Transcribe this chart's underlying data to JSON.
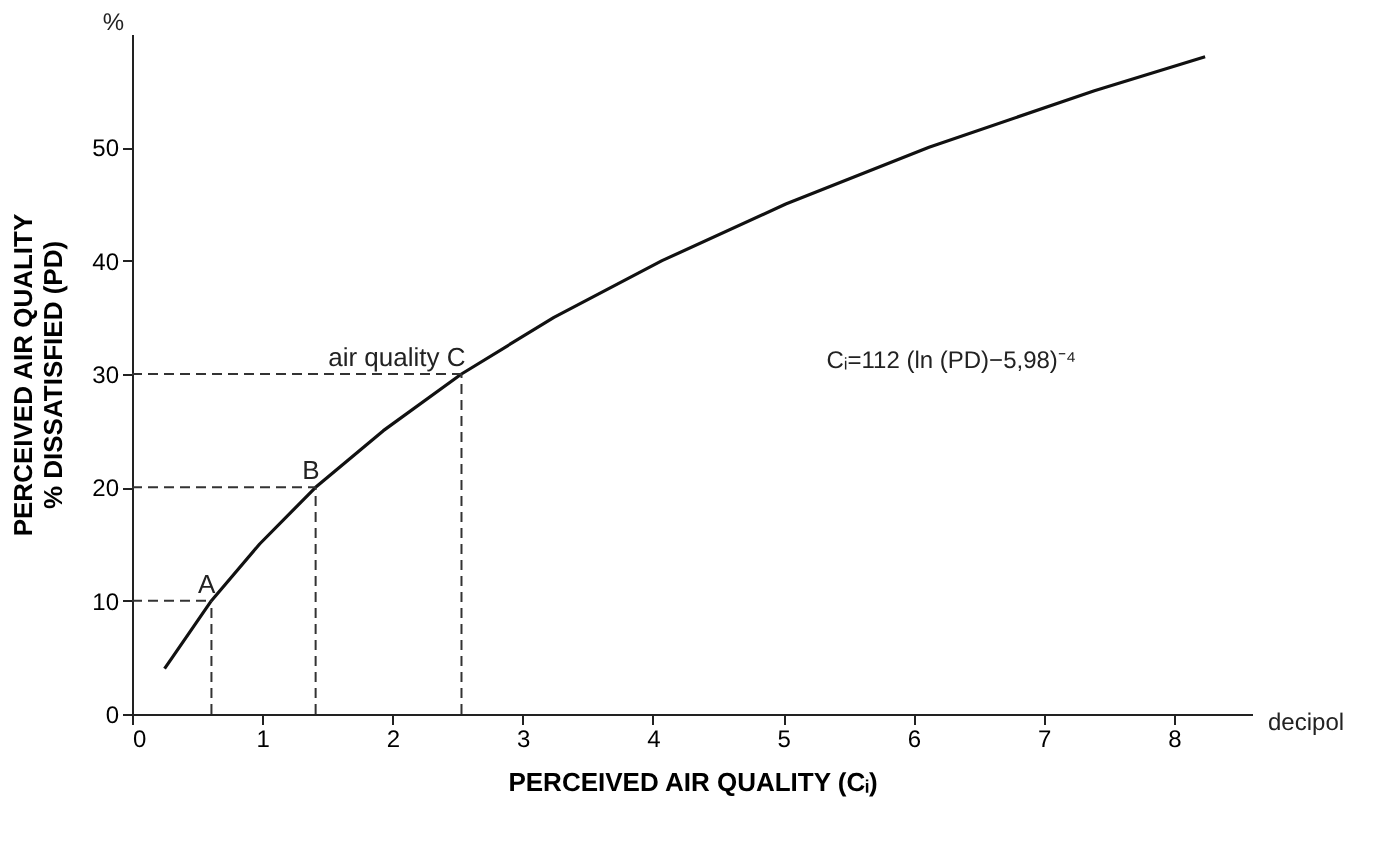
{
  "chart_data": {
    "type": "line",
    "xlabel": "PERCEIVED AIR QUALITY (Cᵢ)",
    "ylabel": [
      "PERCEIVED AIR QUALITY",
      "% DISSATISFIED (PD)"
    ],
    "x": [
      0.25,
      0.31,
      0.61,
      0.98,
      1.41,
      1.93,
      2.53,
      3.24,
      4.07,
      5.02,
      6.12,
      7.39,
      8.24
    ],
    "series": [
      {
        "color": "#111111",
        "values": [
          4,
          5,
          10,
          15,
          20,
          25,
          30,
          35,
          40,
          45,
          50,
          55,
          58
        ]
      }
    ],
    "xlim": [
      0,
      8.6
    ],
    "ylim": [
      0,
      60
    ],
    "xticks": [
      0,
      1,
      2,
      3,
      4,
      5,
      6,
      7,
      8
    ],
    "yticks": [
      0,
      10,
      20,
      30,
      40,
      50
    ],
    "grid": false,
    "line_style": "solid",
    "marker": "none",
    "annotations": [
      "%",
      "decipol",
      "Cᵢ=112 (ln (PD)−5,98)⁻⁴",
      {
        "text": "A",
        "x": 0.61,
        "y": 10
      },
      {
        "text": "B",
        "x": 1.41,
        "y": 20
      },
      {
        "text": "air quality C",
        "x": 2.53,
        "y": 30
      }
    ]
  }
}
